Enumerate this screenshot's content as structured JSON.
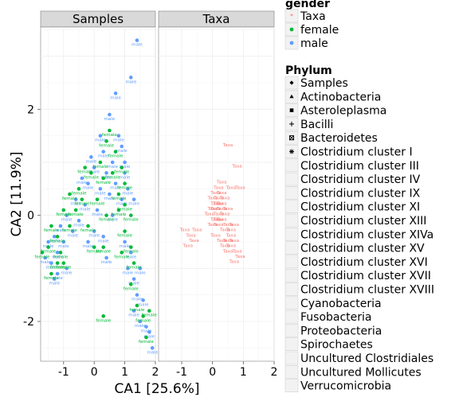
{
  "chart_data": {
    "type": "scatter",
    "xlabel": "CA1   [25.6%]",
    "ylabel": "CA2   [11.9%]",
    "xlim": [
      -1.75,
      2.0
    ],
    "ylim": [
      -2.75,
      3.55
    ],
    "x_ticks": [
      -1,
      0,
      1,
      2
    ],
    "y_ticks": [
      -2,
      0,
      2
    ],
    "grid": true,
    "facets": [
      "Samples",
      "Taxa"
    ],
    "colors": {
      "Taxa": "#F8766D",
      "female": "#00BA38",
      "male": "#619CFF"
    },
    "legend_gender": {
      "title": "gender",
      "entries": [
        "Taxa",
        "female",
        "male"
      ]
    },
    "legend_phylum": {
      "title": "Phylum",
      "entries": [
        "Samples",
        "Actinobacteria",
        "Asteroleplasma",
        "Bacilli",
        "Bacteroidetes",
        "Clostridium cluster I",
        "Clostridium cluster III",
        "Clostridium cluster IV",
        "Clostridium cluster IX",
        "Clostridium cluster XI",
        "Clostridium cluster XIII",
        "Clostridium cluster XIVa",
        "Clostridium cluster XV",
        "Clostridium cluster XVI",
        "Clostridium cluster XVII",
        "Clostridium cluster XVIII",
        "Cyanobacteria",
        "Fusobacteria",
        "Proteobacteria",
        "Spirochaetes",
        "Uncultured Clostridiales",
        "Uncultured Mollicutes",
        "Verrucomicrobia"
      ]
    },
    "series": [
      {
        "name": "male",
        "facet": "Samples",
        "points": [
          [
            1.4,
            3.3
          ],
          [
            1.2,
            2.6
          ],
          [
            0.7,
            2.3
          ],
          [
            0.5,
            1.9
          ],
          [
            0.8,
            1.5
          ],
          [
            0.9,
            1.3
          ],
          [
            0.3,
            1.2
          ],
          [
            0.6,
            1.0
          ],
          [
            1.0,
            1.0
          ],
          [
            0.0,
            0.9
          ],
          [
            0.4,
            0.8
          ],
          [
            0.7,
            0.6
          ],
          [
            0.2,
            0.5
          ],
          [
            -0.2,
            0.6
          ],
          [
            -0.4,
            0.7
          ],
          [
            0.5,
            0.4
          ],
          [
            0.9,
            0.3
          ],
          [
            -0.6,
            0.3
          ],
          [
            -0.3,
            0.2
          ],
          [
            0.1,
            0.1
          ],
          [
            0.6,
            0.0
          ],
          [
            -0.9,
            0.0
          ],
          [
            -0.5,
            -0.1
          ],
          [
            1.1,
            0.5
          ],
          [
            1.3,
            0.3
          ],
          [
            -1.1,
            -0.2
          ],
          [
            -0.7,
            -0.3
          ],
          [
            -1.3,
            -0.4
          ],
          [
            -1.0,
            -0.5
          ],
          [
            -1.5,
            -0.5
          ],
          [
            -1.2,
            -0.7
          ],
          [
            -1.6,
            -0.8
          ],
          [
            -1.4,
            -0.9
          ],
          [
            -1.2,
            -1.1
          ],
          [
            -1.3,
            -1.2
          ],
          [
            -0.9,
            -1.0
          ],
          [
            1.0,
            -0.5
          ],
          [
            1.2,
            -0.7
          ],
          [
            1.1,
            -1.0
          ],
          [
            1.3,
            -1.2
          ],
          [
            1.4,
            -1.5
          ],
          [
            1.3,
            -1.8
          ],
          [
            1.6,
            -1.6
          ],
          [
            1.5,
            -2.0
          ],
          [
            1.7,
            -2.1
          ],
          [
            1.8,
            -2.2
          ],
          [
            1.9,
            -2.5
          ],
          [
            0.3,
            -0.4
          ],
          [
            -0.2,
            -0.5
          ],
          [
            0.0,
            -0.3
          ],
          [
            0.4,
            -0.8
          ],
          [
            1.0,
            0.8
          ],
          [
            1.5,
            -1.0
          ],
          [
            0.2,
            1.5
          ],
          [
            -0.1,
            1.1
          ]
        ]
      },
      {
        "name": "female",
        "facet": "Samples",
        "points": [
          [
            0.5,
            1.6
          ],
          [
            0.4,
            1.4
          ],
          [
            0.7,
            1.2
          ],
          [
            0.2,
            1.0
          ],
          [
            0.9,
            0.9
          ],
          [
            0.3,
            0.7
          ],
          [
            0.6,
            0.8
          ],
          [
            -0.1,
            0.8
          ],
          [
            -0.3,
            0.9
          ],
          [
            -0.5,
            0.5
          ],
          [
            0.1,
            0.3
          ],
          [
            0.8,
            0.4
          ],
          [
            1.0,
            0.2
          ],
          [
            -0.8,
            0.4
          ],
          [
            -0.6,
            0.1
          ],
          [
            -1.0,
            0.1
          ],
          [
            0.4,
            0.0
          ],
          [
            1.2,
            0.0
          ],
          [
            -1.4,
            -0.2
          ],
          [
            -0.8,
            -0.2
          ],
          [
            -1.2,
            -0.4
          ],
          [
            -1.5,
            -0.6
          ],
          [
            -1.1,
            -0.7
          ],
          [
            -1.7,
            -0.7
          ],
          [
            -1.4,
            -1.1
          ],
          [
            -1.0,
            -0.9
          ],
          [
            -1.2,
            -0.9
          ],
          [
            1.0,
            -0.3
          ],
          [
            0.9,
            -0.7
          ],
          [
            1.2,
            -0.6
          ],
          [
            1.3,
            -0.9
          ],
          [
            1.2,
            -1.3
          ],
          [
            1.4,
            -1.7
          ],
          [
            1.6,
            -1.9
          ],
          [
            1.8,
            -1.8
          ],
          [
            1.7,
            -2.3
          ],
          [
            0.3,
            -0.6
          ],
          [
            -0.2,
            -0.2
          ],
          [
            0.0,
            -0.6
          ],
          [
            0.3,
            -1.9
          ],
          [
            1.0,
            0.6
          ],
          [
            0.8,
            0.1
          ],
          [
            -0.4,
            0.3
          ]
        ]
      },
      {
        "name": "Taxa",
        "facet": "Taxa",
        "points": [
          [
            0.5,
            1.3
          ],
          [
            0.8,
            0.9
          ],
          [
            0.3,
            0.6
          ],
          [
            0.6,
            0.5
          ],
          [
            0.9,
            0.5
          ],
          [
            0.1,
            0.4
          ],
          [
            0.2,
            0.5
          ],
          [
            0.3,
            0.4
          ],
          [
            0.0,
            0.3
          ],
          [
            0.4,
            0.3
          ],
          [
            0.2,
            0.2
          ],
          [
            0.5,
            0.1
          ],
          [
            0.1,
            0.1
          ],
          [
            0.3,
            0.1
          ],
          [
            -0.1,
            0.0
          ],
          [
            0.2,
            0.0
          ],
          [
            0.4,
            0.0
          ],
          [
            0.1,
            -0.1
          ],
          [
            0.3,
            -0.1
          ],
          [
            0.5,
            -0.2
          ],
          [
            0.0,
            -0.2
          ],
          [
            0.2,
            -0.2
          ],
          [
            0.4,
            -0.3
          ],
          [
            0.6,
            -0.4
          ],
          [
            0.7,
            -0.5
          ],
          [
            0.8,
            -0.7
          ],
          [
            0.6,
            -0.6
          ],
          [
            0.9,
            -0.8
          ],
          [
            0.7,
            -0.9
          ],
          [
            -0.5,
            -0.3
          ],
          [
            -0.7,
            -0.4
          ],
          [
            -0.9,
            -0.3
          ],
          [
            -0.6,
            -0.5
          ],
          [
            -0.8,
            -0.6
          ],
          [
            0.1,
            -0.4
          ],
          [
            0.3,
            -0.5
          ],
          [
            0.5,
            -0.7
          ],
          [
            0.4,
            -0.6
          ],
          [
            0.6,
            -0.3
          ],
          [
            0.2,
            0.3
          ],
          [
            0.0,
            0.1
          ],
          [
            0.3,
            0.2
          ],
          [
            0.2,
            -0.1
          ],
          [
            0.1,
            0.2
          ],
          [
            0.5,
            -0.5
          ],
          [
            0.7,
            -0.2
          ]
        ]
      }
    ]
  }
}
